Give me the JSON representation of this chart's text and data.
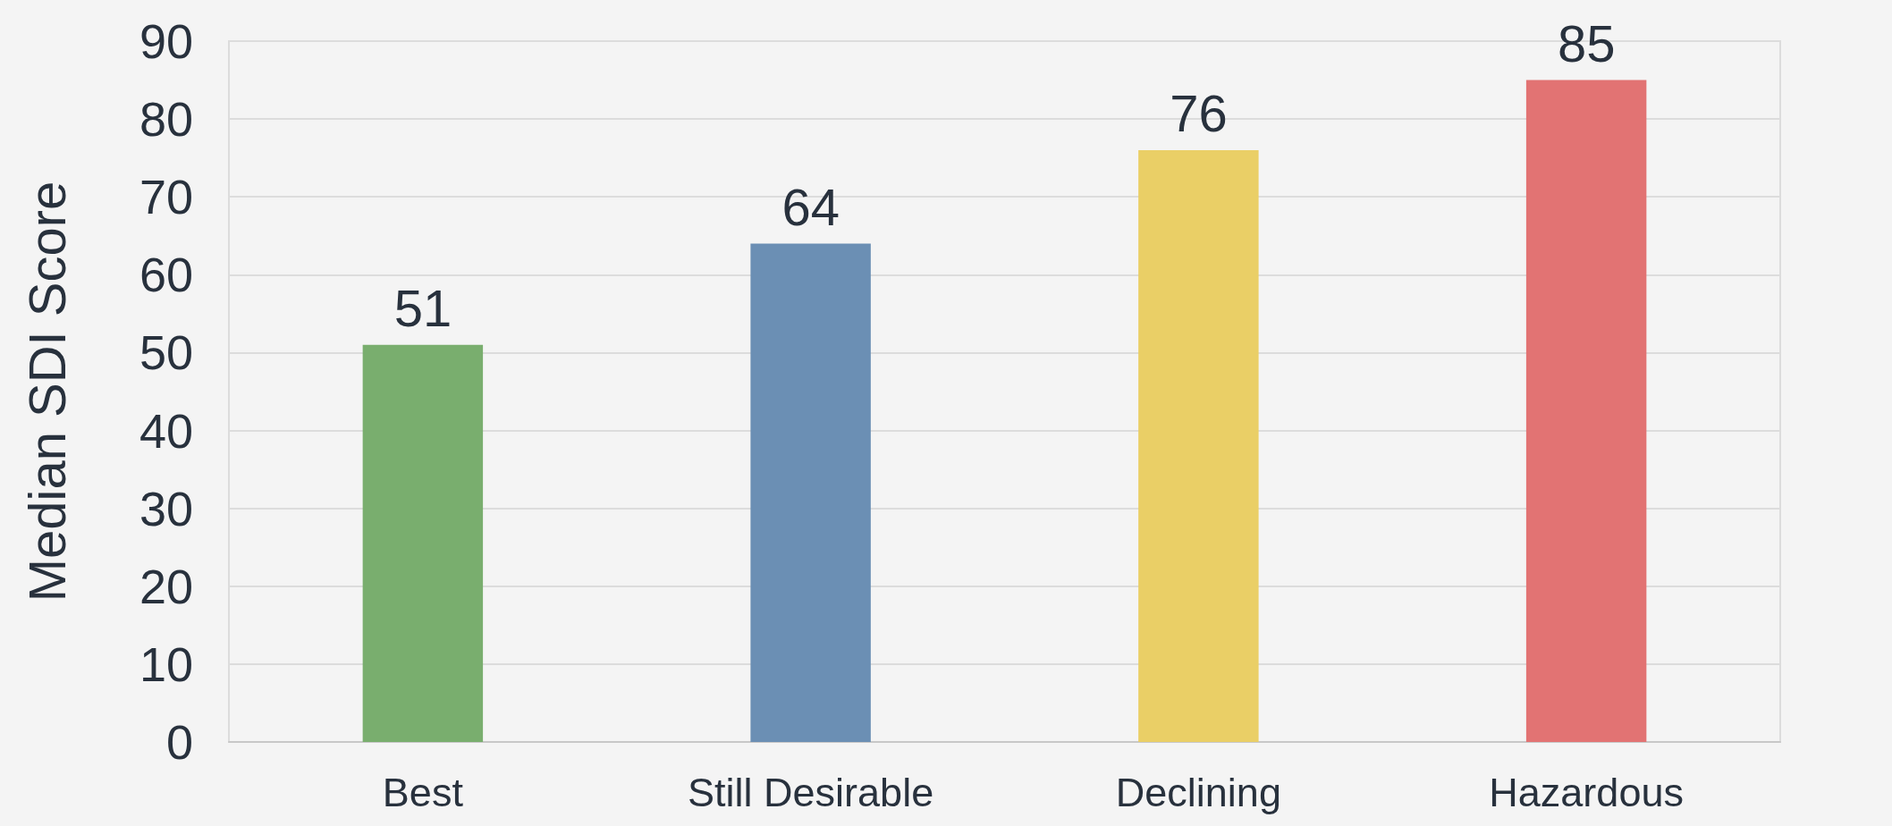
{
  "chart_data": {
    "type": "bar",
    "ylabel": "Median SDI Score",
    "categories": [
      "Best",
      "Still Desirable",
      "Declining",
      "Hazardous"
    ],
    "values": [
      51,
      64,
      76,
      85
    ],
    "colors": [
      "#79ae6e",
      "#6b8fb4",
      "#eacf66",
      "#e27373"
    ],
    "ylim": [
      0,
      90
    ],
    "yticks": [
      0,
      10,
      20,
      30,
      40,
      50,
      60,
      70,
      80,
      90
    ],
    "grid": "y",
    "data_labels": true
  }
}
